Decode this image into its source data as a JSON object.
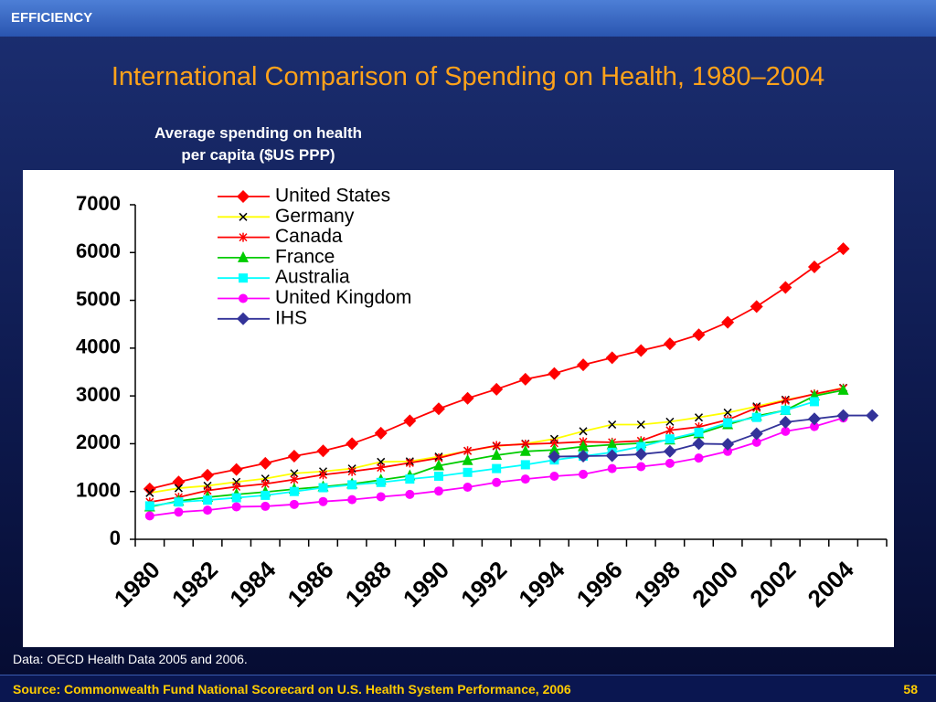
{
  "header": {
    "section": "EFFICIENCY"
  },
  "chart_data": {
    "type": "line",
    "title": "International Comparison of Spending on Health, 1980–2004",
    "y_label": [
      "Average spending on health",
      "per capita ($US PPP)"
    ],
    "categories": [
      "1980",
      null,
      "1982",
      null,
      "1984",
      null,
      "1986",
      null,
      "1988",
      null,
      "1990",
      null,
      "1992",
      null,
      "1994",
      null,
      "1996",
      null,
      "1998",
      null,
      "2000",
      null,
      "2002",
      null,
      "2004",
      null
    ],
    "ylim": [
      0,
      7000
    ],
    "yticks": [
      0,
      1000,
      2000,
      3000,
      4000,
      5000,
      6000,
      7000
    ],
    "grid": false,
    "legend": "top",
    "series": [
      {
        "name": "United States",
        "color": "#ff0000",
        "marker": "diamond",
        "marker_color": "#ff0000",
        "values": [
          1055,
          1200,
          1340,
          1460,
          1590,
          1740,
          1850,
          2000,
          2220,
          2480,
          2730,
          2950,
          3140,
          3350,
          3470,
          3650,
          3800,
          3950,
          4090,
          4280,
          4540,
          4870,
          5270,
          5700,
          6080,
          null
        ]
      },
      {
        "name": "Germany",
        "color": "#ffff00",
        "marker": "x",
        "marker_color": "#000000",
        "values": [
          970,
          1070,
          1120,
          1200,
          1270,
          1380,
          1420,
          1480,
          1620,
          1630,
          1730,
          1850,
          1950,
          2000,
          2100,
          2260,
          2400,
          2400,
          2460,
          2550,
          2650,
          2780,
          2920,
          3030,
          3170,
          null
        ]
      },
      {
        "name": "Canada",
        "color": "#ff0000",
        "marker": "asterisk",
        "marker_color": "#ff0000",
        "values": [
          780,
          880,
          1020,
          1100,
          1160,
          1250,
          1350,
          1420,
          1500,
          1600,
          1700,
          1850,
          1960,
          1990,
          2010,
          2040,
          2030,
          2060,
          2280,
          2350,
          2500,
          2750,
          2900,
          3040,
          3160,
          null
        ]
      },
      {
        "name": "France",
        "color": "#00cc00",
        "marker": "triangle",
        "marker_color": "#00cc00",
        "values": [
          680,
          800,
          880,
          940,
          990,
          1050,
          1100,
          1160,
          1240,
          1330,
          1540,
          1650,
          1760,
          1840,
          1870,
          1940,
          1980,
          2010,
          2080,
          2210,
          2400,
          2580,
          2700,
          3000,
          3120,
          null
        ]
      },
      {
        "name": "Australia",
        "color": "#00ffff",
        "marker": "square",
        "marker_color": "#00ffff",
        "values": [
          700,
          780,
          820,
          870,
          920,
          1000,
          1080,
          1140,
          1190,
          1260,
          1320,
          1400,
          1480,
          1560,
          1660,
          1740,
          1820,
          1940,
          2100,
          2240,
          2440,
          2550,
          2700,
          2880,
          null,
          null
        ]
      },
      {
        "name": "United Kingdom",
        "color": "#ff00ff",
        "marker": "circle",
        "marker_color": "#ff00ff",
        "values": [
          490,
          570,
          610,
          680,
          690,
          730,
          790,
          830,
          890,
          940,
          1010,
          1090,
          1190,
          1260,
          1320,
          1360,
          1480,
          1520,
          1590,
          1700,
          1840,
          2030,
          2260,
          2360,
          2540,
          null
        ]
      },
      {
        "name": "IHS",
        "color": "#333399",
        "marker": "diamond",
        "marker_color": "#333399",
        "values": [
          null,
          null,
          null,
          null,
          null,
          null,
          null,
          null,
          null,
          null,
          null,
          null,
          null,
          null,
          1730,
          1740,
          1750,
          1780,
          1840,
          2000,
          1990,
          2210,
          2450,
          2520,
          2590,
          2590
        ]
      }
    ]
  },
  "note": "Data: OECD Health Data 2005 and 2006.",
  "footer": {
    "source": "Source: Commonwealth Fund National Scorecard on U.S. Health System Performance, 2006",
    "page": "58"
  }
}
